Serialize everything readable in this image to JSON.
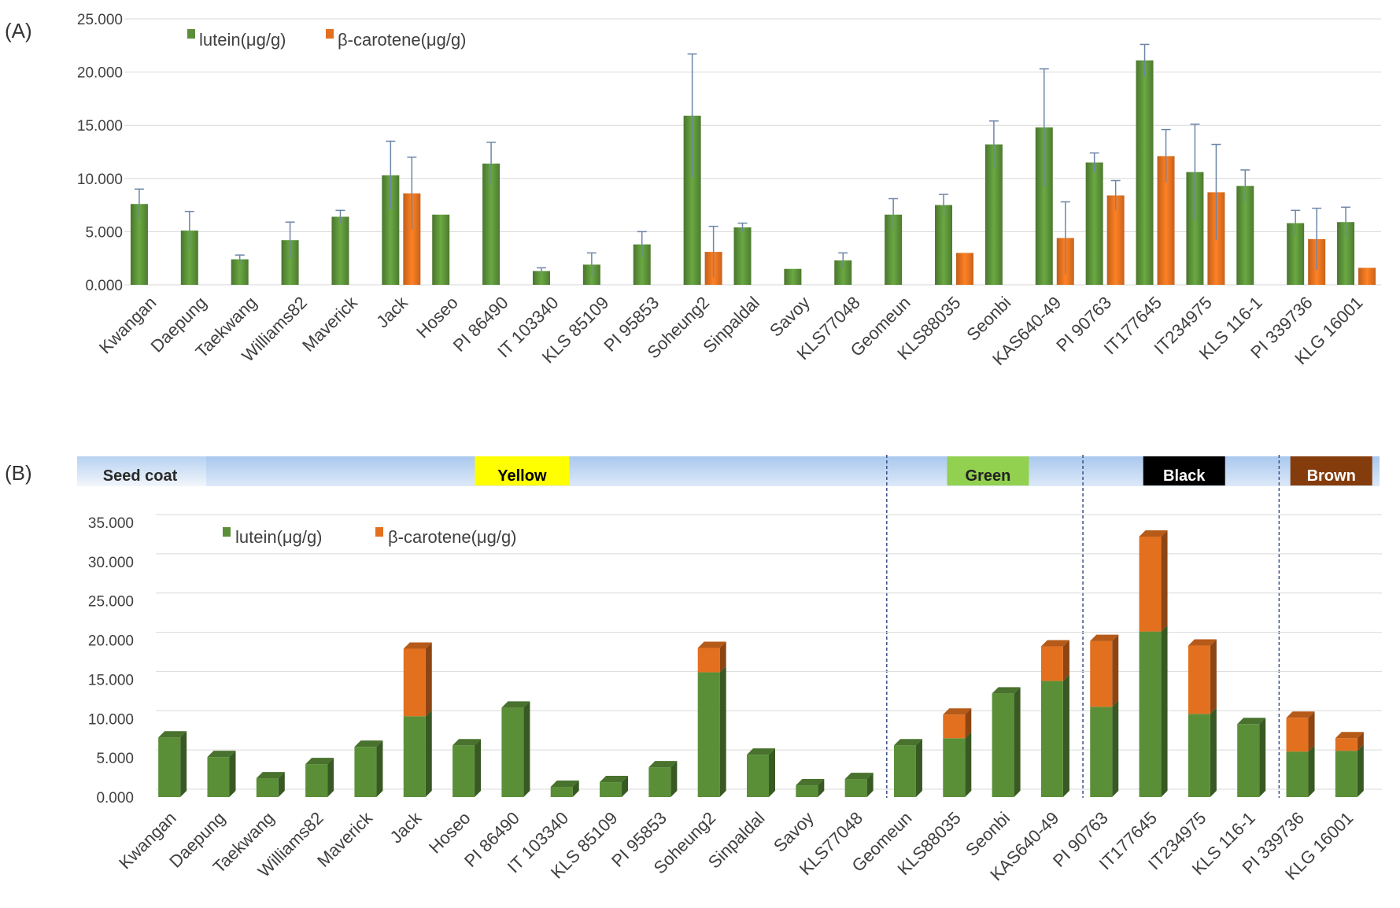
{
  "panels": {
    "a_label": "(A)",
    "b_label": "(B)"
  },
  "colors": {
    "lutein": "#5a8f38",
    "carotene": "#e3701f",
    "error": "#6d86a8"
  },
  "seed_coat": {
    "title": "Seed coat",
    "groups": [
      {
        "label": "Yellow",
        "color": "#ffff00",
        "text_color": "#000000",
        "start": 0,
        "end": 14
      },
      {
        "label": "Green",
        "color": "#92d050",
        "text_color": "#222222",
        "start": 15,
        "end": 18
      },
      {
        "label": "Black",
        "color": "#000000",
        "text_color": "#ffffff",
        "start": 19,
        "end": 22
      },
      {
        "label": "Brown",
        "color": "#843c0c",
        "text_color": "#ffffff",
        "start": 23,
        "end": 24
      }
    ]
  },
  "chart_data": [
    {
      "type": "bar",
      "panel": "A",
      "title": "",
      "xlabel": "",
      "ylabel": "",
      "ylim": [
        0,
        25
      ],
      "yticks": [
        "0.000",
        "5.000",
        "10.000",
        "15.000",
        "20.000",
        "25.000"
      ],
      "grid": true,
      "legend_position": "top-left",
      "categories": [
        "Kwangan",
        "Daepung",
        "Taekwang",
        "Williams82",
        "Maverick",
        "Jack",
        "Hoseo",
        "PI 86490",
        "IT 103340",
        "KLS 85109",
        "PI 95853",
        "Soheung2",
        "Sinpaldal",
        "Savoy",
        "KLS77048",
        "Geomeun",
        "KLS88035",
        "Seonbi",
        "KAS640-49",
        "PI 90763",
        "IT177645",
        "IT234975",
        "KLS 116-1",
        "PI 339736",
        "KLG 16001"
      ],
      "series": [
        {
          "name": "lutein(μg/g)",
          "values": [
            7.6,
            5.1,
            2.4,
            4.2,
            6.4,
            10.3,
            6.6,
            11.4,
            1.3,
            1.9,
            3.8,
            15.9,
            5.4,
            1.5,
            2.3,
            6.6,
            7.5,
            13.2,
            14.8,
            11.5,
            21.1,
            10.6,
            9.3,
            5.8,
            5.9
          ],
          "errors": [
            1.4,
            1.8,
            0.4,
            1.7,
            0.6,
            3.2,
            0.0,
            2.0,
            0.3,
            1.1,
            1.2,
            5.8,
            0.4,
            0.0,
            0.7,
            1.5,
            1.0,
            2.2,
            5.5,
            0.9,
            1.5,
            4.5,
            1.5,
            1.2,
            1.4
          ]
        },
        {
          "name": "β-carotene(μg/g)",
          "values": [
            0,
            0,
            0,
            0,
            0,
            8.6,
            0,
            0,
            0,
            0,
            0,
            3.1,
            0,
            0,
            0,
            0,
            3.0,
            0,
            4.4,
            8.4,
            12.1,
            8.7,
            0,
            4.3,
            1.6
          ],
          "errors": [
            0,
            0,
            0,
            0,
            0,
            3.4,
            0,
            0,
            0,
            0,
            0,
            2.4,
            0,
            0,
            0,
            0,
            0.0,
            0,
            3.4,
            1.4,
            2.5,
            4.5,
            0,
            2.9,
            0.0
          ]
        }
      ]
    },
    {
      "type": "bar",
      "stacked": true,
      "panel": "B",
      "title": "",
      "xlabel": "",
      "ylabel": "",
      "ylim": [
        0,
        35
      ],
      "yticks": [
        "0.000",
        "5.000",
        "10.000",
        "15.000",
        "20.000",
        "25.000",
        "30.000",
        "35.000"
      ],
      "grid": true,
      "legend_position": "top-left",
      "categories": [
        "Kwangan",
        "Daepung",
        "Taekwang",
        "Williams82",
        "Maverick",
        "Jack",
        "Hoseo",
        "PI 86490",
        "IT 103340",
        "KLS 85109",
        "PI 95853",
        "Soheung2",
        "Sinpaldal",
        "Savoy",
        "KLS77048",
        "Geomeun",
        "KLS88035",
        "Seonbi",
        "KAS640-49",
        "PI 90763",
        "IT177645",
        "IT234975",
        "KLS 116-1",
        "PI 339736",
        "KLG 16001"
      ],
      "series": [
        {
          "name": "lutein(μg/g)",
          "values": [
            7.6,
            5.1,
            2.4,
            4.2,
            6.4,
            10.3,
            6.6,
            11.4,
            1.3,
            1.9,
            3.8,
            15.9,
            5.4,
            1.5,
            2.3,
            6.6,
            7.5,
            13.2,
            14.8,
            11.5,
            21.1,
            10.6,
            9.3,
            5.8,
            5.9
          ]
        },
        {
          "name": "β-carotene(μg/g)",
          "values": [
            0,
            0,
            0,
            0,
            0,
            8.6,
            0,
            0,
            0,
            0,
            0,
            3.1,
            0,
            0,
            0,
            0,
            3.0,
            0,
            4.4,
            8.4,
            12.1,
            8.7,
            0,
            4.3,
            1.6
          ]
        }
      ]
    }
  ]
}
